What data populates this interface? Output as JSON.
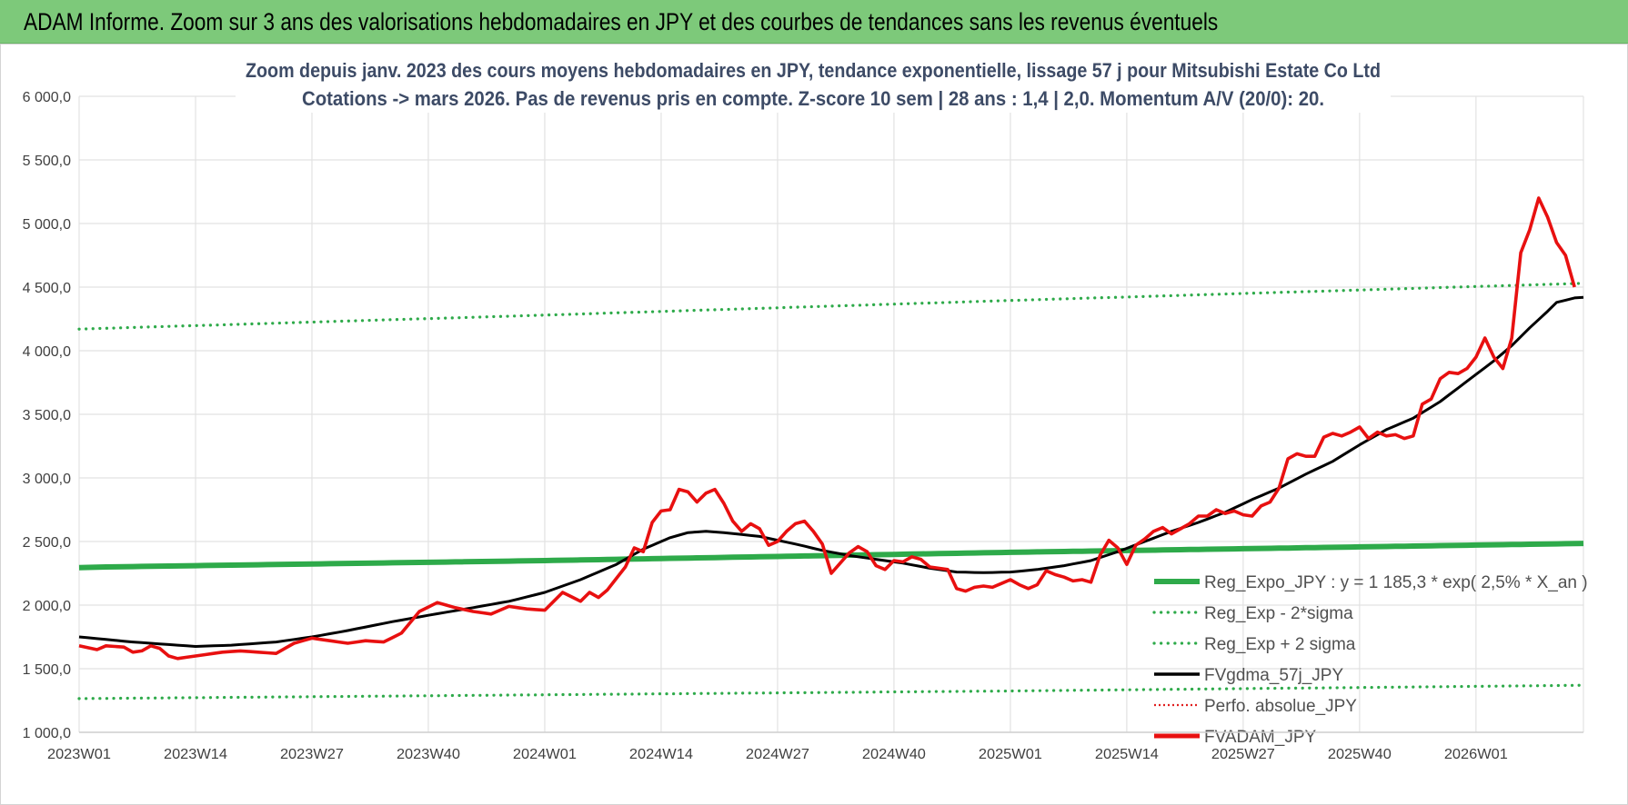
{
  "banner": {
    "title": "ADAM Informe. Zoom sur 3 ans des valorisations hebdomadaires en JPY et des courbes de tendances sans les revenus éventuels"
  },
  "colors": {
    "banner": "#7dc97a",
    "reg_expo": "#2eaa4a",
    "bands": "#2eaa4a",
    "fvgdma": "#000000",
    "perfo": "#e02020",
    "fvadam": "#e81010",
    "grid": "#e2e2e2"
  },
  "chart_data": {
    "type": "line",
    "title": "Zoom depuis janv. 2023 des cours moyens hebdomadaires en JPY, tendance exponentielle, lissage 57 j pour Mitsubishi Estate Co Ltd",
    "subtitle": "Cotations -> mars 2026. Pas de revenus pris en compte. Z-score 10 sem | 28 ans : 1,4 | 2,0. Momentum A/V (20/0): 20.",
    "xlabel": "",
    "ylabel": "",
    "ylim": [
      1000,
      6000
    ],
    "y_ticks": [
      "1 000,0",
      "1 500,0",
      "2 000,0",
      "2 500,0",
      "3 000,0",
      "3 500,0",
      "4 000,0",
      "4 500,0",
      "5 000,0",
      "5 500,0",
      "6 000,0"
    ],
    "x_ticks": [
      {
        "label": "2023W01",
        "week": 0
      },
      {
        "label": "2023W14",
        "week": 13
      },
      {
        "label": "2023W27",
        "week": 26
      },
      {
        "label": "2023W40",
        "week": 39
      },
      {
        "label": "2024W01",
        "week": 52
      },
      {
        "label": "2024W14",
        "week": 65
      },
      {
        "label": "2024W27",
        "week": 78
      },
      {
        "label": "2024W40",
        "week": 91
      },
      {
        "label": "2025W01",
        "week": 104
      },
      {
        "label": "2025W14",
        "week": 117
      },
      {
        "label": "2025W27",
        "week": 130
      },
      {
        "label": "2025W40",
        "week": 143
      },
      {
        "label": "2026W01",
        "week": 156
      }
    ],
    "x_range_weeks": [
      0,
      168
    ],
    "grid": true,
    "legend_position": "right",
    "series": [
      {
        "name": "Reg_Expo_JPY : y = 1 185,3 * exp( 2,5% * X_an )",
        "style": "thick-solid",
        "color_key": "reg_expo",
        "anchors": [
          [
            0,
            2295
          ],
          [
            3,
            2300
          ],
          [
            52,
            2350
          ],
          [
            104,
            2415
          ],
          [
            168,
            2485
          ]
        ]
      },
      {
        "name": "Reg_Exp - 2*sigma",
        "style": "dotted",
        "color_key": "bands",
        "anchors": [
          [
            0,
            1265
          ],
          [
            52,
            1295
          ],
          [
            104,
            1325
          ],
          [
            168,
            1370
          ]
        ]
      },
      {
        "name": "Reg_Exp + 2 sigma",
        "style": "dotted",
        "color_key": "bands",
        "anchors": [
          [
            0,
            4170
          ],
          [
            52,
            4280
          ],
          [
            104,
            4395
          ],
          [
            168,
            4530
          ]
        ]
      },
      {
        "name": "FVgdma_57j_JPY",
        "style": "solid",
        "color_key": "fvgdma",
        "anchors": [
          [
            0,
            1750
          ],
          [
            6,
            1710
          ],
          [
            10,
            1690
          ],
          [
            13,
            1675
          ],
          [
            17,
            1685
          ],
          [
            22,
            1710
          ],
          [
            26,
            1750
          ],
          [
            30,
            1800
          ],
          [
            35,
            1870
          ],
          [
            39,
            1920
          ],
          [
            44,
            1980
          ],
          [
            48,
            2030
          ],
          [
            52,
            2100
          ],
          [
            56,
            2200
          ],
          [
            60,
            2320
          ],
          [
            63,
            2440
          ],
          [
            66,
            2530
          ],
          [
            68,
            2570
          ],
          [
            70,
            2580
          ],
          [
            72,
            2570
          ],
          [
            74,
            2555
          ],
          [
            76,
            2540
          ],
          [
            78,
            2510
          ],
          [
            80,
            2480
          ],
          [
            83,
            2430
          ],
          [
            86,
            2390
          ],
          [
            89,
            2360
          ],
          [
            92,
            2330
          ],
          [
            95,
            2290
          ],
          [
            98,
            2260
          ],
          [
            101,
            2255
          ],
          [
            104,
            2260
          ],
          [
            107,
            2280
          ],
          [
            110,
            2310
          ],
          [
            113,
            2350
          ],
          [
            116,
            2420
          ],
          [
            119,
            2500
          ],
          [
            122,
            2580
          ],
          [
            125,
            2650
          ],
          [
            128,
            2730
          ],
          [
            131,
            2830
          ],
          [
            134,
            2920
          ],
          [
            137,
            3030
          ],
          [
            140,
            3130
          ],
          [
            143,
            3260
          ],
          [
            146,
            3380
          ],
          [
            149,
            3470
          ],
          [
            152,
            3600
          ],
          [
            155,
            3760
          ],
          [
            158,
            3920
          ],
          [
            160,
            4040
          ],
          [
            162,
            4180
          ],
          [
            164,
            4310
          ],
          [
            165,
            4380
          ],
          [
            167,
            4415
          ],
          [
            168,
            4420
          ]
        ]
      },
      {
        "name": "Perfo. absolue_JPY",
        "style": "dotted-red",
        "color_key": "perfo",
        "anchors": []
      },
      {
        "name": "FVADAM_JPY",
        "style": "thick-solid",
        "color_key": "fvadam",
        "anchors": [
          [
            0,
            1680
          ],
          [
            2,
            1650
          ],
          [
            3,
            1680
          ],
          [
            5,
            1670
          ],
          [
            6,
            1630
          ],
          [
            7,
            1640
          ],
          [
            8,
            1680
          ],
          [
            9,
            1660
          ],
          [
            10,
            1600
          ],
          [
            11,
            1580
          ],
          [
            12,
            1590
          ],
          [
            14,
            1610
          ],
          [
            16,
            1630
          ],
          [
            18,
            1640
          ],
          [
            20,
            1630
          ],
          [
            22,
            1620
          ],
          [
            24,
            1700
          ],
          [
            26,
            1740
          ],
          [
            28,
            1720
          ],
          [
            30,
            1700
          ],
          [
            32,
            1720
          ],
          [
            34,
            1710
          ],
          [
            36,
            1780
          ],
          [
            38,
            1950
          ],
          [
            40,
            2020
          ],
          [
            42,
            1980
          ],
          [
            44,
            1950
          ],
          [
            46,
            1930
          ],
          [
            48,
            1990
          ],
          [
            50,
            1970
          ],
          [
            52,
            1960
          ],
          [
            54,
            2100
          ],
          [
            56,
            2030
          ],
          [
            57,
            2100
          ],
          [
            58,
            2060
          ],
          [
            59,
            2120
          ],
          [
            61,
            2300
          ],
          [
            62,
            2450
          ],
          [
            63,
            2420
          ],
          [
            64,
            2650
          ],
          [
            65,
            2740
          ],
          [
            66,
            2750
          ],
          [
            67,
            2910
          ],
          [
            68,
            2890
          ],
          [
            69,
            2810
          ],
          [
            70,
            2880
          ],
          [
            71,
            2910
          ],
          [
            72,
            2800
          ],
          [
            73,
            2660
          ],
          [
            74,
            2580
          ],
          [
            75,
            2640
          ],
          [
            76,
            2600
          ],
          [
            77,
            2470
          ],
          [
            78,
            2500
          ],
          [
            79,
            2580
          ],
          [
            80,
            2640
          ],
          [
            81,
            2660
          ],
          [
            82,
            2580
          ],
          [
            83,
            2480
          ],
          [
            84,
            2250
          ],
          [
            85,
            2330
          ],
          [
            86,
            2410
          ],
          [
            87,
            2460
          ],
          [
            88,
            2420
          ],
          [
            89,
            2310
          ],
          [
            90,
            2280
          ],
          [
            91,
            2350
          ],
          [
            92,
            2340
          ],
          [
            93,
            2380
          ],
          [
            94,
            2360
          ],
          [
            95,
            2300
          ],
          [
            96,
            2290
          ],
          [
            97,
            2280
          ],
          [
            98,
            2130
          ],
          [
            99,
            2110
          ],
          [
            100,
            2140
          ],
          [
            101,
            2150
          ],
          [
            102,
            2140
          ],
          [
            103,
            2170
          ],
          [
            104,
            2200
          ],
          [
            105,
            2160
          ],
          [
            106,
            2130
          ],
          [
            107,
            2160
          ],
          [
            108,
            2270
          ],
          [
            109,
            2240
          ],
          [
            110,
            2220
          ],
          [
            111,
            2190
          ],
          [
            112,
            2200
          ],
          [
            113,
            2180
          ],
          [
            114,
            2390
          ],
          [
            115,
            2510
          ],
          [
            116,
            2450
          ],
          [
            117,
            2320
          ],
          [
            118,
            2470
          ],
          [
            119,
            2520
          ],
          [
            120,
            2580
          ],
          [
            121,
            2610
          ],
          [
            122,
            2560
          ],
          [
            123,
            2600
          ],
          [
            124,
            2640
          ],
          [
            125,
            2700
          ],
          [
            126,
            2700
          ],
          [
            127,
            2750
          ],
          [
            128,
            2720
          ],
          [
            129,
            2740
          ],
          [
            130,
            2710
          ],
          [
            131,
            2700
          ],
          [
            132,
            2780
          ],
          [
            133,
            2810
          ],
          [
            134,
            2920
          ],
          [
            135,
            3150
          ],
          [
            136,
            3190
          ],
          [
            137,
            3170
          ],
          [
            138,
            3170
          ],
          [
            139,
            3320
          ],
          [
            140,
            3350
          ],
          [
            141,
            3330
          ],
          [
            142,
            3360
          ],
          [
            143,
            3400
          ],
          [
            144,
            3310
          ],
          [
            145,
            3360
          ],
          [
            146,
            3330
          ],
          [
            147,
            3340
          ],
          [
            148,
            3310
          ],
          [
            149,
            3330
          ],
          [
            150,
            3580
          ],
          [
            151,
            3620
          ],
          [
            152,
            3780
          ],
          [
            153,
            3830
          ],
          [
            154,
            3820
          ],
          [
            155,
            3860
          ],
          [
            156,
            3950
          ],
          [
            157,
            4100
          ],
          [
            158,
            3950
          ],
          [
            159,
            3860
          ],
          [
            160,
            4100
          ],
          [
            161,
            4770
          ],
          [
            162,
            4950
          ],
          [
            163,
            5200
          ],
          [
            164,
            5050
          ],
          [
            165,
            4850
          ],
          [
            166,
            4750
          ],
          [
            167,
            4500
          ]
        ]
      }
    ]
  }
}
